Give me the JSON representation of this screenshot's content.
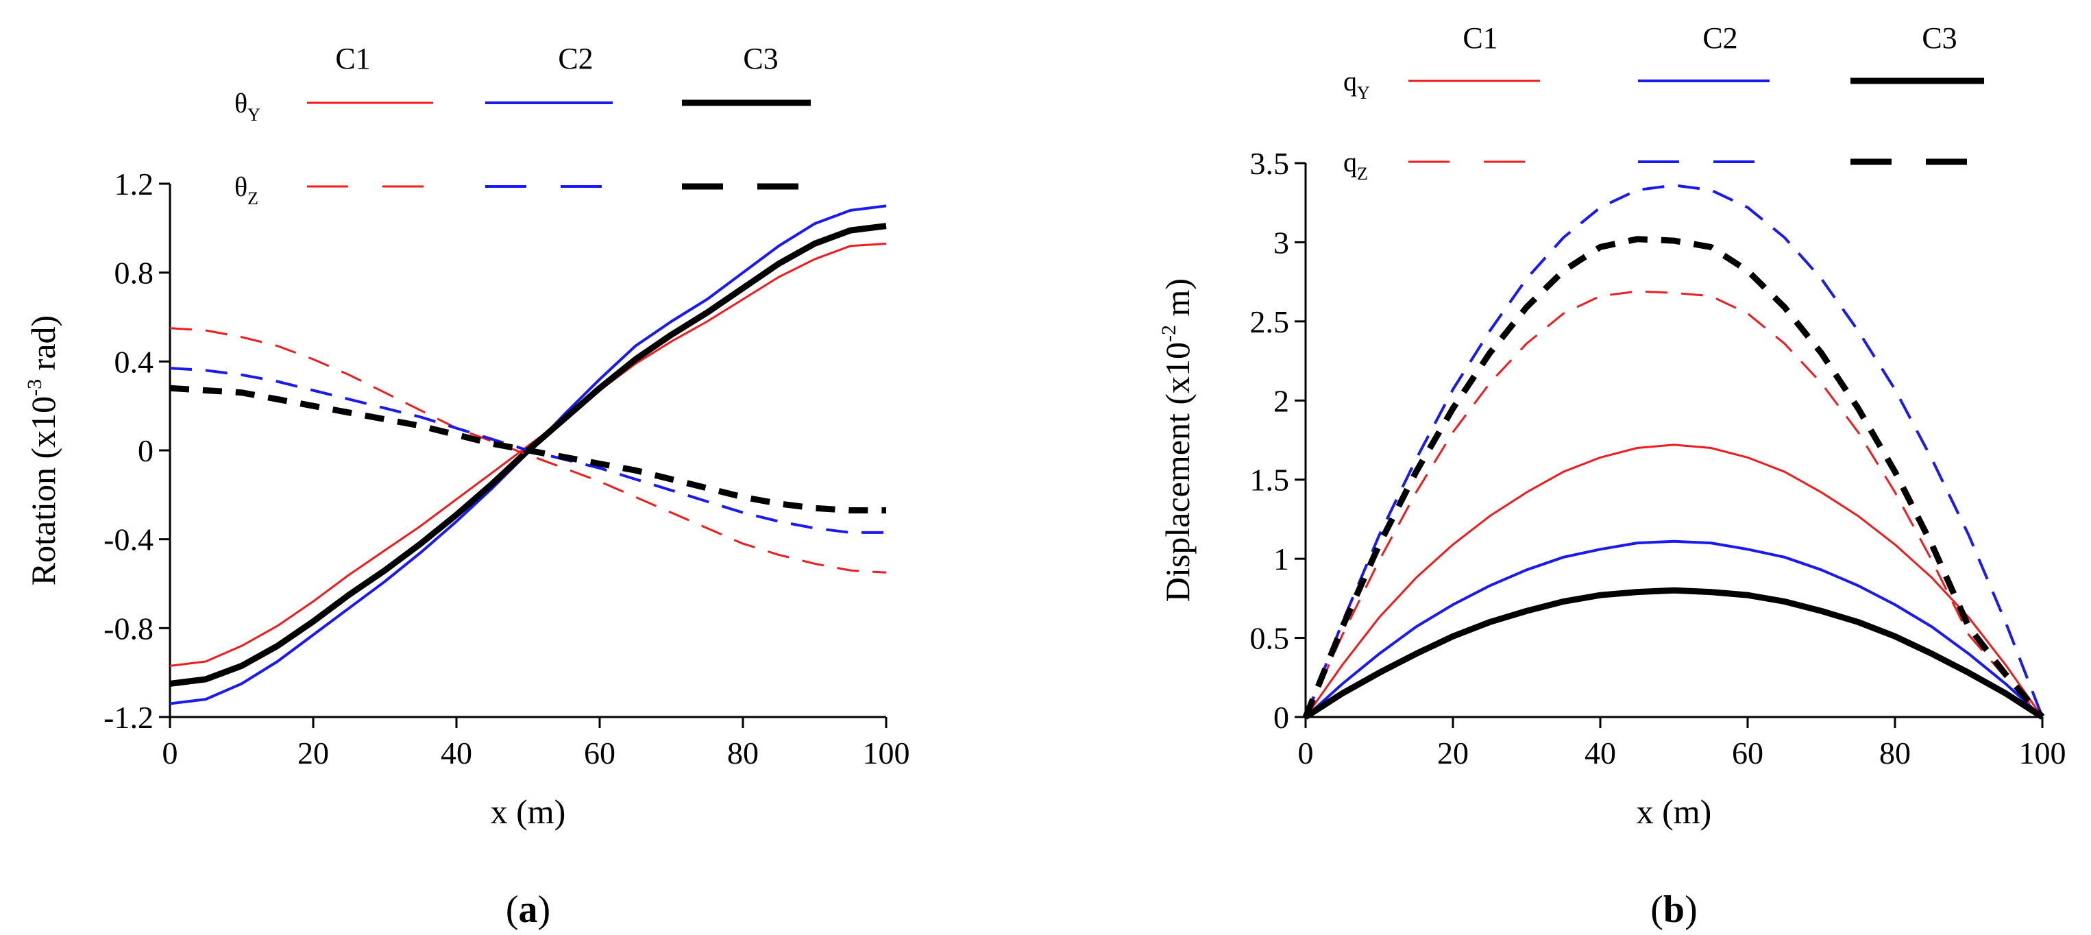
{
  "chart_data": [
    {
      "type": "line",
      "id": "a",
      "caption": {
        "open": "(",
        "letter": "a",
        "close": ")"
      },
      "xlabel": "x (m)",
      "ylabel": {
        "pre": "Rotation (x10",
        "sup": "-3",
        "post": " rad)"
      },
      "xlim": [
        0,
        100
      ],
      "ylim": [
        -1.2,
        1.2
      ],
      "xticks": [
        0,
        20,
        40,
        60,
        80,
        100
      ],
      "yticks": [
        -1.2,
        -0.8,
        -0.4,
        0,
        0.4,
        0.8,
        1.2
      ],
      "ytick_labels": [
        "-1.2",
        "-0.8",
        "-0.4",
        "0",
        "0.4",
        "0.8",
        "1.2"
      ],
      "legend": {
        "headers": [
          "C1",
          "C2",
          "C3"
        ],
        "rows": [
          {
            "symbol": "θ",
            "sub": "Y",
            "style": "solid"
          },
          {
            "symbol": "θ",
            "sub": "Z",
            "style": "dashed"
          }
        ]
      },
      "x": [
        0,
        5,
        10,
        15,
        20,
        25,
        30,
        35,
        40,
        45,
        50,
        55,
        60,
        65,
        70,
        75,
        80,
        85,
        90,
        95,
        100
      ],
      "series": [
        {
          "name": "θY C1",
          "color": "#ee1c1c",
          "width": 3,
          "dash": "",
          "values": [
            -0.97,
            -0.95,
            -0.88,
            -0.79,
            -0.68,
            -0.56,
            -0.45,
            -0.34,
            -0.22,
            -0.1,
            0.02,
            0.14,
            0.27,
            0.39,
            0.49,
            0.58,
            0.68,
            0.78,
            0.86,
            0.92,
            0.93
          ]
        },
        {
          "name": "θY C2",
          "color": "#1a1aee",
          "width": 4,
          "dash": "",
          "values": [
            -1.14,
            -1.12,
            -1.05,
            -0.95,
            -0.83,
            -0.71,
            -0.59,
            -0.46,
            -0.32,
            -0.17,
            -0.01,
            0.16,
            0.32,
            0.47,
            0.58,
            0.68,
            0.8,
            0.92,
            1.02,
            1.08,
            1.1
          ]
        },
        {
          "name": "θY C3",
          "color": "#000000",
          "width": 9,
          "dash": "",
          "values": [
            -1.05,
            -1.03,
            -0.97,
            -0.88,
            -0.77,
            -0.65,
            -0.54,
            -0.42,
            -0.29,
            -0.15,
            0.0,
            0.14,
            0.28,
            0.41,
            0.52,
            0.62,
            0.73,
            0.84,
            0.93,
            0.99,
            1.01
          ]
        },
        {
          "name": "θZ C1",
          "color": "#ee1c1c",
          "width": 3,
          "dash": "32 20",
          "values": [
            0.55,
            0.54,
            0.51,
            0.47,
            0.41,
            0.34,
            0.26,
            0.18,
            0.1,
            0.04,
            -0.02,
            -0.08,
            -0.14,
            -0.21,
            -0.28,
            -0.35,
            -0.42,
            -0.47,
            -0.51,
            -0.54,
            -0.55
          ]
        },
        {
          "name": "θZ C2",
          "color": "#1a1aee",
          "width": 4,
          "dash": "32 20",
          "values": [
            0.37,
            0.36,
            0.34,
            0.31,
            0.27,
            0.23,
            0.19,
            0.15,
            0.1,
            0.05,
            0.0,
            -0.04,
            -0.08,
            -0.13,
            -0.18,
            -0.23,
            -0.28,
            -0.32,
            -0.35,
            -0.37,
            -0.37
          ]
        },
        {
          "name": "θZ C3",
          "color": "#000000",
          "width": 9,
          "dash": "28 20",
          "values": [
            0.28,
            0.27,
            0.26,
            0.23,
            0.2,
            0.17,
            0.14,
            0.11,
            0.07,
            0.03,
            0.0,
            -0.03,
            -0.06,
            -0.09,
            -0.13,
            -0.17,
            -0.21,
            -0.24,
            -0.26,
            -0.27,
            -0.27
          ]
        }
      ]
    },
    {
      "type": "line",
      "id": "b",
      "caption": {
        "open": "(",
        "letter": "b",
        "close": ")"
      },
      "xlabel": "x (m)",
      "ylabel": {
        "pre": "Displacement (x10",
        "sup": "-2",
        "post": " m)"
      },
      "xlim": [
        0,
        100
      ],
      "ylim": [
        0,
        3.5
      ],
      "xticks": [
        0,
        20,
        40,
        60,
        80,
        100
      ],
      "yticks": [
        0,
        0.5,
        1,
        1.5,
        2,
        2.5,
        3,
        3.5
      ],
      "ytick_labels": [
        "0",
        "0.5",
        "1",
        "1.5",
        "2",
        "2.5",
        "3",
        "3.5"
      ],
      "legend": {
        "headers": [
          "C1",
          "C2",
          "C3"
        ],
        "rows": [
          {
            "symbol": "q",
            "sub": "Y",
            "style": "solid"
          },
          {
            "symbol": "q",
            "sub": "Z",
            "style": "dashed"
          }
        ]
      },
      "x": [
        0,
        5,
        10,
        15,
        20,
        25,
        30,
        35,
        40,
        45,
        50,
        55,
        60,
        65,
        70,
        75,
        80,
        85,
        90,
        95,
        100
      ],
      "series": [
        {
          "name": "qY C1",
          "color": "#ee1c1c",
          "width": 3,
          "dash": "",
          "values": [
            0.0,
            0.33,
            0.63,
            0.88,
            1.09,
            1.27,
            1.42,
            1.55,
            1.64,
            1.7,
            1.72,
            1.7,
            1.64,
            1.55,
            1.42,
            1.27,
            1.09,
            0.88,
            0.63,
            0.33,
            0.0
          ]
        },
        {
          "name": "qY C2",
          "color": "#1a1aee",
          "width": 4,
          "dash": "",
          "values": [
            0.0,
            0.21,
            0.4,
            0.57,
            0.71,
            0.83,
            0.93,
            1.01,
            1.06,
            1.1,
            1.11,
            1.1,
            1.06,
            1.01,
            0.93,
            0.83,
            0.71,
            0.57,
            0.4,
            0.21,
            0.0
          ]
        },
        {
          "name": "qY C3",
          "color": "#000000",
          "width": 9,
          "dash": "",
          "values": [
            0.0,
            0.15,
            0.28,
            0.4,
            0.51,
            0.6,
            0.67,
            0.73,
            0.77,
            0.79,
            0.8,
            0.79,
            0.77,
            0.73,
            0.67,
            0.6,
            0.51,
            0.4,
            0.28,
            0.15,
            0.0
          ]
        },
        {
          "name": "qZ C1",
          "color": "#ee1c1c",
          "width": 3,
          "dash": "32 20",
          "values": [
            0.0,
            0.52,
            0.99,
            1.42,
            1.8,
            2.11,
            2.36,
            2.55,
            2.66,
            2.69,
            2.68,
            2.66,
            2.55,
            2.36,
            2.11,
            1.8,
            1.42,
            0.99,
            0.52,
            0.25,
            0.0
          ]
        },
        {
          "name": "qZ C2",
          "color": "#1a1aee",
          "width": 4,
          "dash": "32 20",
          "values": [
            0.0,
            0.6,
            1.15,
            1.63,
            2.07,
            2.44,
            2.77,
            3.03,
            3.22,
            3.33,
            3.36,
            3.33,
            3.22,
            3.03,
            2.77,
            2.44,
            2.07,
            1.63,
            1.15,
            0.6,
            0.0
          ]
        },
        {
          "name": "qZ C3",
          "color": "#000000",
          "width": 9,
          "dash": "28 20",
          "values": [
            0.0,
            0.57,
            1.09,
            1.55,
            1.95,
            2.3,
            2.59,
            2.82,
            2.97,
            3.02,
            3.01,
            2.97,
            2.82,
            2.59,
            2.3,
            1.95,
            1.55,
            1.09,
            0.57,
            0.27,
            0.0
          ]
        }
      ]
    }
  ]
}
